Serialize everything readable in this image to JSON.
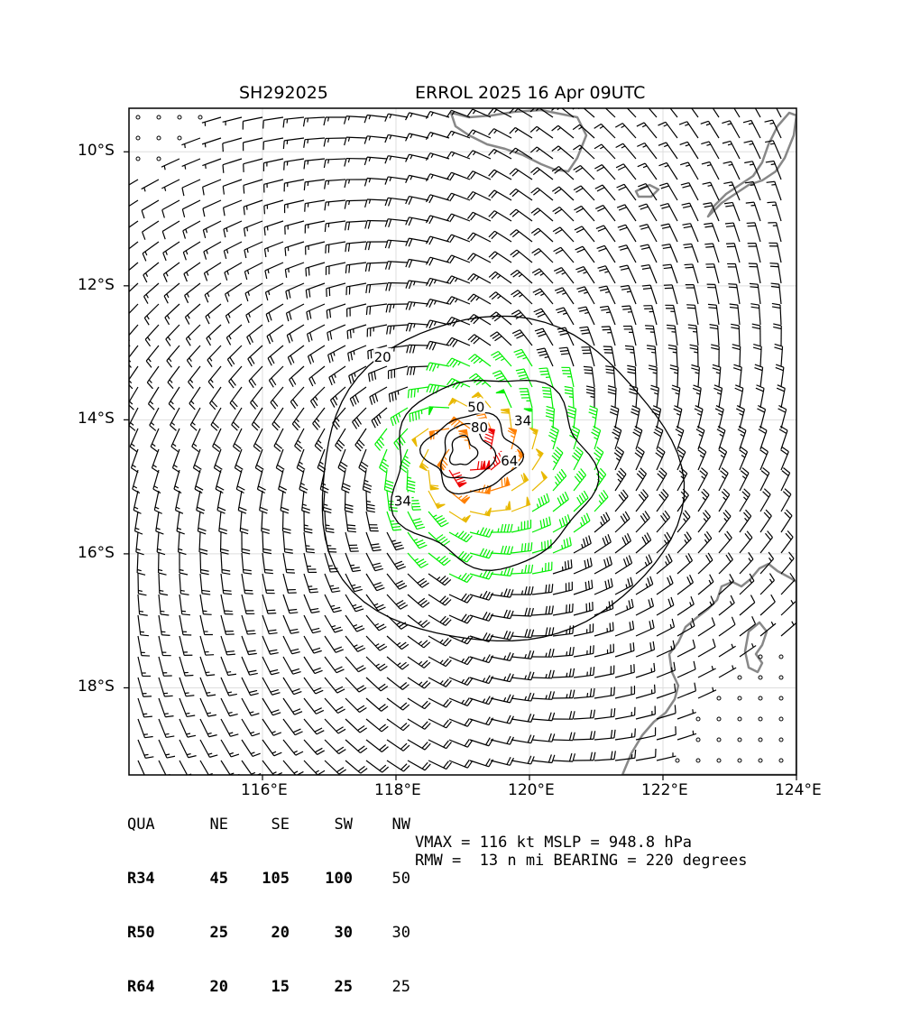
{
  "title": {
    "storm_id": "SH292025",
    "storm_info": "ERROL 2025 16 Apr 09UTC"
  },
  "map": {
    "lon_range": [
      114.0,
      124.0
    ],
    "lat_range": [
      -19.3,
      -9.35
    ],
    "lat_ticks": [
      {
        "value": -10,
        "label": "10°S"
      },
      {
        "value": -12,
        "label": "12°S"
      },
      {
        "value": -14,
        "label": "14°S"
      },
      {
        "value": -16,
        "label": "16°S"
      },
      {
        "value": -18,
        "label": "18°S"
      }
    ],
    "lon_ticks": [
      {
        "value": 116,
        "label": "116°E"
      },
      {
        "value": 118,
        "label": "118°E"
      },
      {
        "value": 120,
        "label": "120°E"
      },
      {
        "value": 122,
        "label": "122°E"
      },
      {
        "value": 124,
        "label": "124°E"
      }
    ],
    "grid": true,
    "storm_center": {
      "lon": 119.0,
      "lat": -14.5
    },
    "contour_labels": [
      {
        "value": "20",
        "lon": 117.8,
        "lat": -13.05
      },
      {
        "value": "34",
        "lon": 119.9,
        "lat": -14.0
      },
      {
        "value": "50",
        "lon": 119.2,
        "lat": -13.8
      },
      {
        "value": "80",
        "lon": 119.25,
        "lat": -14.1
      },
      {
        "value": "64",
        "lon": 119.7,
        "lat": -14.6
      },
      {
        "value": "34",
        "lon": 118.1,
        "lat": -15.2
      }
    ],
    "colors": {
      "calm": "#000000",
      "below_34": "#000000",
      "r34": "#00ee00",
      "r50": "#e8b800",
      "r64": "#ff7f00",
      "r80": "#ee0000",
      "coast": "#888888"
    }
  },
  "radii_table": {
    "header": [
      "QUA",
      "NE",
      "SE",
      "SW",
      "NW"
    ],
    "rows": [
      {
        "label": "R34",
        "values": [
          "45",
          "105",
          "100",
          "50"
        ]
      },
      {
        "label": "R50",
        "values": [
          "25",
          "20",
          "30",
          "30"
        ]
      },
      {
        "label": "R64",
        "values": [
          "20",
          "15",
          "25",
          "25"
        ]
      }
    ]
  },
  "stats": {
    "line1": "VMAX = 116 kt MSLP = 948.8 hPa",
    "line2": "RMW =  13 n mi BEARING = 220 degrees"
  }
}
